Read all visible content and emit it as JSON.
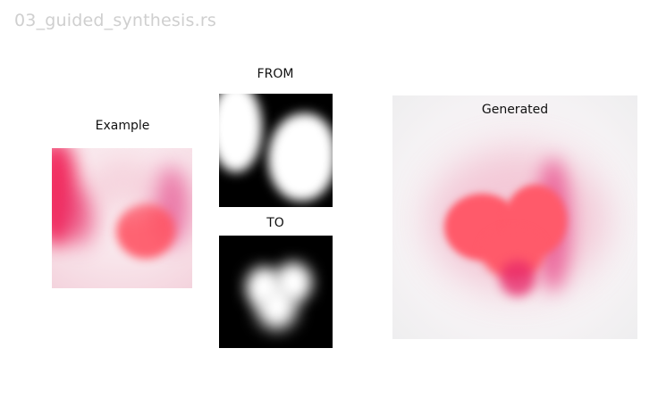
{
  "title": "03_guided_synthesis.rs",
  "panels": {
    "example": {
      "label": "Example"
    },
    "from": {
      "label": "FROM"
    },
    "to": {
      "label": "TO"
    },
    "generated": {
      "label": "Generated"
    }
  },
  "colors": {
    "ink": "#f0104a",
    "blob": "#ff5a6a",
    "mask_bg": "#000000",
    "mask_fg": "#ffffff"
  }
}
